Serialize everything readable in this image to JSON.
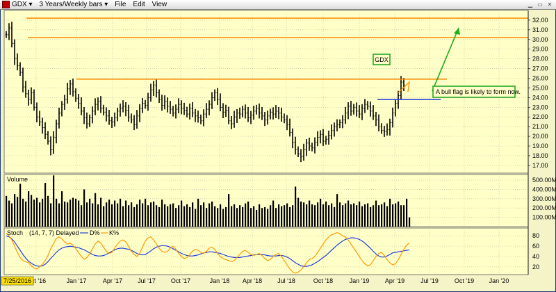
{
  "window": {
    "symbol": "GDX",
    "period": "3 Years/Weekly bars",
    "menu": [
      "File",
      "Edit",
      "View"
    ]
  },
  "colors": {
    "background": "#ffffc8",
    "bars": "#000000",
    "resistance": "#ff8c00",
    "flag": "#1f3fd8",
    "arrow": "#18b018",
    "d_line": "#1f3fd8",
    "k_line": "#ff9900"
  },
  "chart_data": [
    {
      "type": "ohlc",
      "title": "",
      "y_ticks": [
        "17.00",
        "18.00",
        "19.00",
        "20.00",
        "21.00",
        "22.00",
        "23.00",
        "24.00",
        "25.00",
        "26.00",
        "27.00",
        "28.00",
        "29.00",
        "30.00",
        "31.00",
        "32.00"
      ],
      "ylim": [
        16.2,
        33.0
      ],
      "x_labels": [
        "Oct '16",
        "Jan '17",
        "Apr '17",
        "Jul '17",
        "Oct '17",
        "Jan '18",
        "Apr '18",
        "Jul '18",
        "Oct '18",
        "Jan '19",
        "Apr '19",
        "Jul '19",
        "Oct '19",
        "Jan '20"
      ],
      "closes": [
        30.5,
        31.2,
        29.6,
        28.0,
        27.3,
        26.6,
        25.1,
        24.4,
        23.8,
        24.5,
        23.0,
        22.0,
        21.5,
        20.9,
        20.2,
        19.5,
        18.6,
        19.9,
        21.3,
        22.4,
        23.3,
        23.8,
        24.9,
        25.4,
        24.6,
        23.9,
        23.4,
        22.6,
        21.9,
        21.3,
        21.9,
        22.6,
        23.3,
        23.6,
        22.9,
        22.5,
        22.1,
        21.6,
        21.5,
        21.9,
        22.6,
        22.9,
        23.1,
        22.7,
        22.0,
        21.7,
        21.2,
        22.1,
        22.9,
        23.4,
        23.2,
        24.0,
        24.8,
        25.3,
        24.5,
        23.8,
        23.2,
        23.6,
        23.1,
        22.8,
        22.4,
        22.8,
        23.3,
        22.9,
        22.7,
        22.3,
        22.9,
        22.4,
        22.1,
        21.9,
        21.6,
        22.3,
        22.8,
        23.3,
        24.0,
        24.5,
        23.8,
        23.0,
        22.5,
        22.7,
        21.6,
        21.3,
        22.0,
        22.4,
        22.3,
        22.8,
        22.4,
        21.9,
        22.2,
        22.6,
        22.9,
        22.4,
        22.1,
        21.7,
        22.1,
        22.5,
        22.3,
        22.6,
        22.4,
        22.0,
        21.7,
        21.2,
        20.4,
        19.4,
        18.6,
        18.2,
        17.9,
        18.6,
        19.3,
        19.0,
        18.8,
        19.4,
        19.9,
        20.2,
        19.5,
        19.7,
        20.1,
        20.6,
        21.0,
        21.2,
        21.4,
        21.7,
        22.4,
        23.1,
        22.6,
        23.0,
        22.6,
        22.3,
        22.9,
        23.3,
        23.1,
        22.6,
        22.1,
        21.7,
        21.0,
        20.6,
        20.5,
        20.7,
        21.4,
        22.4,
        23.4,
        24.2,
        25.6,
        25.3
      ],
      "annotations": [
        {
          "type": "hline",
          "y": 32.2,
          "color": "resistance"
        },
        {
          "type": "hline",
          "y": 30.2,
          "color": "resistance"
        },
        {
          "type": "hline",
          "y": 25.9,
          "color": "resistance"
        },
        {
          "type": "hline",
          "y": 23.8,
          "color": "flag"
        },
        {
          "type": "text",
          "text": "GDX"
        },
        {
          "type": "text",
          "text": "A bull flag is likely to form now."
        },
        {
          "type": "arrow",
          "direction": "up",
          "color": "arrow"
        }
      ]
    },
    {
      "type": "bar",
      "title": "Volume",
      "y_ticks": [
        "100.00M",
        "200.00M",
        "300.00M",
        "400.00M",
        "500.00M"
      ],
      "ylim": [
        0,
        560
      ],
      "values": [
        330,
        280,
        250,
        350,
        320,
        460,
        300,
        270,
        380,
        340,
        290,
        310,
        260,
        300,
        470,
        330,
        250,
        550,
        300,
        250,
        380,
        270,
        260,
        290,
        310,
        300,
        280,
        230,
        400,
        260,
        300,
        250,
        360,
        240,
        310,
        220,
        260,
        290,
        240,
        280,
        250,
        300,
        220,
        280,
        230,
        260,
        210,
        240,
        290,
        250,
        300,
        230,
        260,
        270,
        230,
        210,
        290,
        240,
        220,
        240,
        250,
        200,
        230,
        280,
        220,
        240,
        210,
        260,
        190,
        300,
        230,
        260,
        200,
        250,
        270,
        220,
        200,
        240,
        190,
        210,
        350,
        220,
        240,
        200,
        230,
        210,
        250,
        270,
        200,
        220,
        180,
        240,
        200,
        210,
        190,
        230,
        280,
        200,
        240,
        220,
        230,
        250,
        210,
        230,
        430,
        310,
        270,
        260,
        240,
        280,
        240,
        230,
        260,
        300,
        240,
        270,
        230,
        250,
        210,
        350,
        260,
        230,
        250,
        280,
        240,
        250,
        230,
        270,
        220,
        240,
        250,
        210,
        230,
        280,
        230,
        240,
        260,
        220,
        300,
        240,
        250,
        270,
        230,
        230,
        300,
        100
      ]
    },
    {
      "type": "line",
      "title": "Stoch",
      "subtitle": "(14, 7, 7) Delayed",
      "legend": [
        "D%",
        "K%"
      ],
      "y_ticks": [
        "20",
        "40",
        "60",
        "80"
      ],
      "ylim": [
        5,
        95
      ],
      "series": [
        {
          "name": "D%",
          "values": [
            80,
            78,
            74,
            68,
            60,
            52,
            44,
            37,
            31,
            27,
            24,
            22,
            21,
            22,
            25,
            30,
            36,
            42,
            48,
            53,
            56,
            58,
            59,
            60,
            59,
            58,
            57,
            55,
            53,
            50,
            47,
            44,
            42,
            41,
            41,
            42,
            44,
            47,
            50,
            53,
            55,
            56,
            56,
            55,
            54,
            52,
            49,
            46,
            44,
            43,
            44,
            47,
            51,
            55,
            58,
            60,
            61,
            61,
            60,
            58,
            55,
            52,
            49,
            46,
            44,
            42,
            41,
            41,
            42,
            43,
            45,
            47,
            48,
            49,
            49,
            48,
            47,
            46,
            44,
            42,
            40,
            39,
            38,
            38,
            38,
            39,
            40,
            41,
            42,
            43,
            44,
            44,
            44,
            43,
            42,
            41,
            41,
            41,
            42,
            42,
            41,
            39,
            36,
            32,
            28,
            25,
            22,
            21,
            21,
            22,
            24,
            27,
            30,
            34,
            38,
            42,
            47,
            52,
            57,
            62,
            66,
            70,
            73,
            75,
            76,
            76,
            75,
            73,
            70,
            66,
            61,
            56,
            50,
            45,
            41,
            39,
            39,
            41,
            44,
            47,
            48,
            49,
            50,
            51,
            52,
            53
          ]
        },
        {
          "name": "K%",
          "values": [
            85,
            80,
            72,
            60,
            48,
            38,
            32,
            30,
            28,
            22,
            18,
            16,
            20,
            25,
            32,
            42,
            55,
            65,
            75,
            78,
            74,
            68,
            64,
            66,
            62,
            55,
            48,
            40,
            35,
            38,
            45,
            55,
            64,
            70,
            66,
            58,
            50,
            46,
            48,
            56,
            64,
            70,
            72,
            68,
            60,
            50,
            44,
            40,
            46,
            58,
            70,
            76,
            78,
            72,
            64,
            56,
            50,
            48,
            50,
            56,
            60,
            54,
            46,
            40,
            36,
            38,
            44,
            50,
            54,
            52,
            48,
            46,
            50,
            56,
            58,
            54,
            46,
            40,
            36,
            34,
            32,
            30,
            32,
            38,
            44,
            50,
            52,
            48,
            44,
            42,
            44,
            46,
            42,
            36,
            32,
            34,
            40,
            44,
            46,
            40,
            32,
            24,
            16,
            10,
            8,
            10,
            14,
            20,
            28,
            34,
            36,
            40,
            48,
            56,
            64,
            72,
            78,
            82,
            84,
            86,
            84,
            80,
            78,
            72,
            64,
            56,
            48,
            40,
            32,
            26,
            22,
            24,
            32,
            40,
            46,
            48,
            42,
            34,
            28,
            24,
            26,
            34,
            44,
            54,
            62,
            66
          ]
        }
      ]
    }
  ],
  "time_readout": "7/25/2016"
}
